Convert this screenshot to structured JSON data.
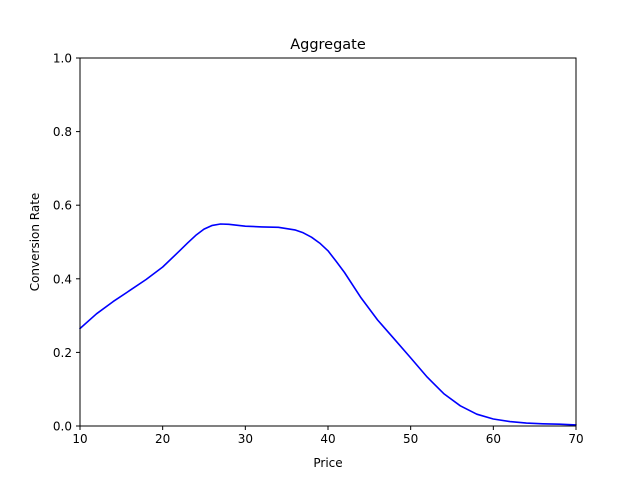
{
  "chart_data": {
    "type": "line",
    "title": "Aggregate",
    "xlabel": "Price",
    "ylabel": "Conversion Rate",
    "xlim": [
      10,
      70
    ],
    "ylim": [
      0.0,
      1.0
    ],
    "xticks": [
      10,
      20,
      30,
      40,
      50,
      60,
      70
    ],
    "xtick_labels": [
      "10",
      "20",
      "30",
      "40",
      "50",
      "60",
      "70"
    ],
    "yticks": [
      0.0,
      0.2,
      0.4,
      0.6,
      0.8,
      1.0
    ],
    "ytick_labels": [
      "0.0",
      "0.2",
      "0.4",
      "0.6",
      "0.8",
      "1.0"
    ],
    "grid": false,
    "series": [
      {
        "color": "#0000ff",
        "x": [
          10,
          12,
          14,
          16,
          18,
          20,
          22,
          23,
          24,
          25,
          26,
          27,
          28,
          30,
          32,
          34,
          36,
          37,
          38,
          39,
          40,
          41,
          42,
          44,
          46,
          48,
          50,
          52,
          54,
          56,
          58,
          60,
          62,
          64,
          66,
          68,
          70
        ],
        "y": [
          0.265,
          0.305,
          0.338,
          0.368,
          0.398,
          0.432,
          0.475,
          0.497,
          0.518,
          0.535,
          0.545,
          0.549,
          0.548,
          0.543,
          0.541,
          0.54,
          0.533,
          0.525,
          0.513,
          0.497,
          0.476,
          0.447,
          0.417,
          0.348,
          0.288,
          0.237,
          0.185,
          0.133,
          0.088,
          0.055,
          0.032,
          0.019,
          0.012,
          0.008,
          0.006,
          0.005,
          0.003
        ]
      }
    ]
  }
}
